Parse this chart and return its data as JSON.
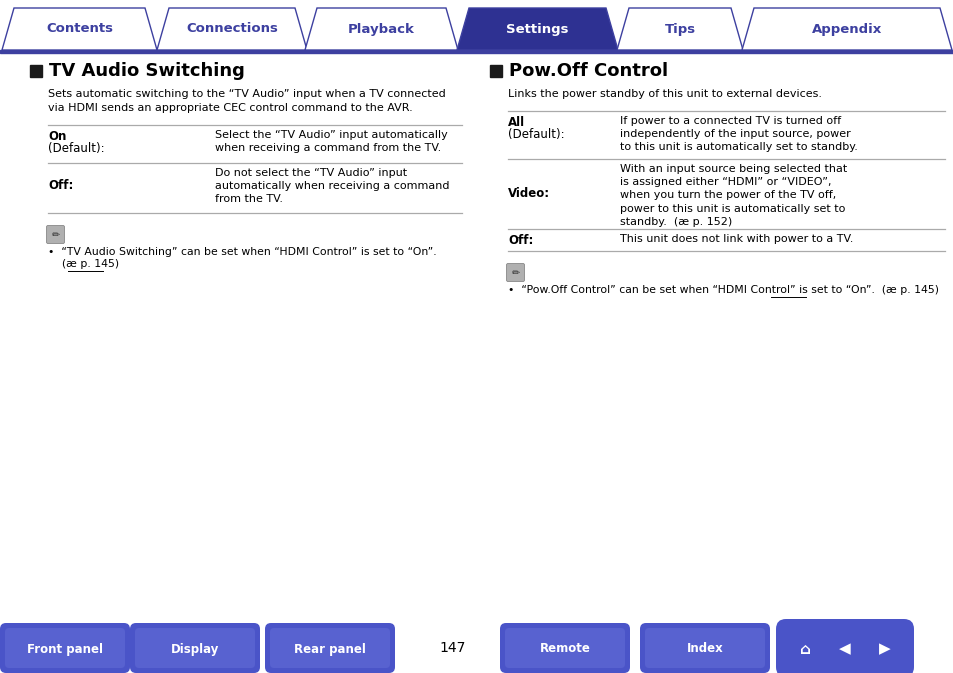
{
  "bg_color": "#ffffff",
  "tab_labels": [
    "Contents",
    "Connections",
    "Playback",
    "Settings",
    "Tips",
    "Appendix"
  ],
  "active_tab": 3,
  "tab_color_active": "#2e3192",
  "tab_color_inactive": "#ffffff",
  "tab_text_active": "#ffffff",
  "tab_text_inactive": "#3d40a0",
  "tab_border_color": "#3d40a0",
  "left_title": "TV Audio Switching",
  "left_desc": "Sets automatic switching to the “TV Audio” input when a TV connected\nvia HDMI sends an appropriate CEC control command to the AVR.",
  "left_rows": [
    {
      "label_bold": "On",
      "label_normal": "(Default):",
      "text": "Select the “TV Audio” input automatically\nwhen receiving a command from the TV."
    },
    {
      "label_bold": "Off:",
      "label_normal": "",
      "text": "Do not select the “TV Audio” input\nautomatically when receiving a command\nfrom the TV."
    }
  ],
  "left_note_line1": "•  “TV Audio Switching” can be set when “HDMI Control” is set to “On”.",
  "left_note_line2": "    (æ p. 145)",
  "left_note_link": "p. 145",
  "right_title": "Pow.Off Control",
  "right_desc": "Links the power standby of this unit to external devices.",
  "right_rows": [
    {
      "label_bold": "All",
      "label_normal": "(Default):",
      "text": "If power to a connected TV is turned off\nindependently of the input source, power\nto this unit is automatically set to standby."
    },
    {
      "label_bold": "Video:",
      "label_normal": "",
      "text": "With an input source being selected that\nis assigned either “HDMI” or “VIDEO”,\nwhen you turn the power of the TV off,\npower to this unit is automatically set to\nstandby.  (æ p. 152)"
    },
    {
      "label_bold": "Off:",
      "label_normal": "",
      "text": "This unit does not link with power to a TV."
    }
  ],
  "right_note": "•  “Pow.Off Control” can be set when “HDMI Control” is set to “On”.  (æ p. 145)",
  "right_note_link": "p. 145",
  "bottom_buttons": [
    "Front panel",
    "Display",
    "Rear panel",
    "Remote",
    "Index"
  ],
  "page_number": "147",
  "button_color_dark": "#2e3192",
  "button_color_mid": "#4a54c8",
  "title_square_color": "#1a1a1a",
  "line_color": "#aaaaaa"
}
